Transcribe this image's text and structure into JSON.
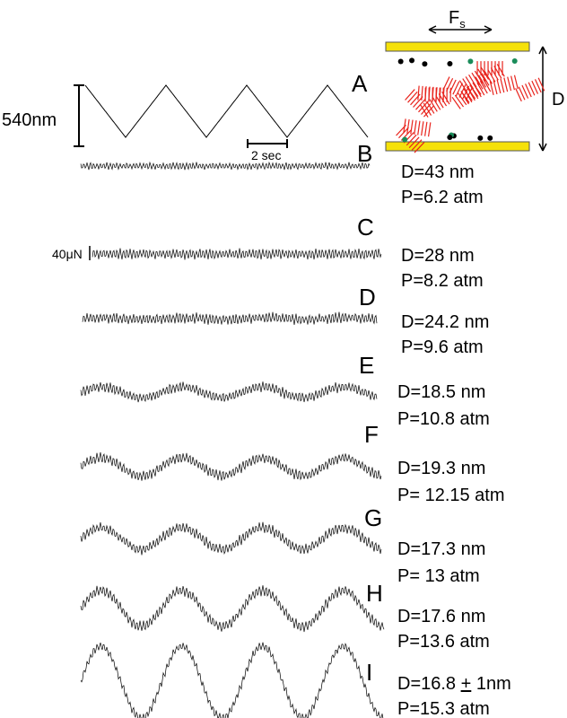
{
  "scale_labels": {
    "amplitude": "540nm",
    "time": "2 sec",
    "force": "40μN"
  },
  "schematic": {
    "force_main": "F",
    "force_sub": "s",
    "gap": "D"
  },
  "panels": [
    {
      "letter": "A"
    },
    {
      "letter": "B",
      "d": "D=43 nm",
      "p": "P=6.2 atm"
    },
    {
      "letter": "C",
      "d": "D=28 nm",
      "p": "P=8.2 atm"
    },
    {
      "letter": "D",
      "d": "D=24.2 nm",
      "p": "P=9.6 atm"
    },
    {
      "letter": "E",
      "d": "D=18.5 nm",
      "p": "P=10.8 atm"
    },
    {
      "letter": "F",
      "d": "D=19.3 nm",
      "p": "P= 12.15 atm"
    },
    {
      "letter": "G",
      "d": "D=17.3 nm",
      "p": "P= 13 atm"
    },
    {
      "letter": "H",
      "d": "D=17.6 nm",
      "p": "P=13.6 atm"
    },
    {
      "letter": "I",
      "d_prefix": "D=16.8 ",
      "d_pm": "+",
      "d_suffix": " 1nm",
      "p": "P=15.3 atm"
    }
  ]
}
